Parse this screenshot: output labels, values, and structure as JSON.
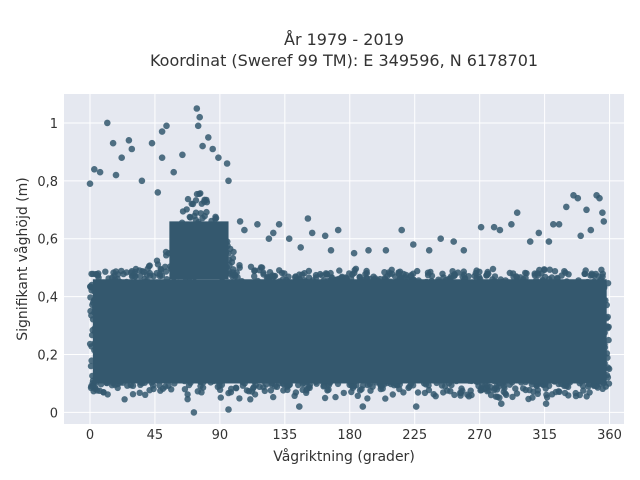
{
  "chart_data": {
    "type": "scatter",
    "title_line1": "År 1979 - 2019",
    "title_line2": "Koordinat (Sweref 99 TM): E 349596, N 6178701",
    "xlabel": "Vågriktning (grader)",
    "ylabel": "Signifikant våghöjd (m)",
    "xlim": [
      -18,
      370
    ],
    "ylim": [
      -0.04,
      1.1
    ],
    "xticks": [
      0,
      45,
      90,
      135,
      180,
      225,
      270,
      315,
      360
    ],
    "xtick_labels": [
      "0",
      "45",
      "90",
      "135",
      "180",
      "225",
      "270",
      "315",
      "360"
    ],
    "yticks": [
      0,
      0.2,
      0.4,
      0.6,
      0.8,
      1
    ],
    "ytick_labels": [
      "0",
      "0,2",
      "0,4",
      "0,6",
      "0,8",
      "1"
    ],
    "grid": true,
    "marker_color": "#34586e",
    "plot_background": "#e5e8f0",
    "dense_band": {
      "x_range": [
        0,
        360
      ],
      "core_y_range": [
        0.06,
        0.5
      ],
      "peak_region_x": [
        55,
        95
      ],
      "peak_region_upper_y": 0.78
    },
    "points": [
      {
        "x": 12,
        "y": 1.0
      },
      {
        "x": 74,
        "y": 1.05
      },
      {
        "x": 76,
        "y": 1.02
      },
      {
        "x": 75,
        "y": 0.99
      },
      {
        "x": 53,
        "y": 0.99
      },
      {
        "x": 50,
        "y": 0.97
      },
      {
        "x": 82,
        "y": 0.95
      },
      {
        "x": 27,
        "y": 0.94
      },
      {
        "x": 16,
        "y": 0.93
      },
      {
        "x": 43,
        "y": 0.93
      },
      {
        "x": 78,
        "y": 0.92
      },
      {
        "x": 85,
        "y": 0.91
      },
      {
        "x": 29,
        "y": 0.91
      },
      {
        "x": 22,
        "y": 0.88
      },
      {
        "x": 50,
        "y": 0.88
      },
      {
        "x": 64,
        "y": 0.89
      },
      {
        "x": 89,
        "y": 0.88
      },
      {
        "x": 95,
        "y": 0.86
      },
      {
        "x": 3,
        "y": 0.84
      },
      {
        "x": 7,
        "y": 0.83
      },
      {
        "x": 18,
        "y": 0.82
      },
      {
        "x": 0,
        "y": 0.79
      },
      {
        "x": 36,
        "y": 0.8
      },
      {
        "x": 58,
        "y": 0.83
      },
      {
        "x": 96,
        "y": 0.8
      },
      {
        "x": 47,
        "y": 0.76
      },
      {
        "x": 104,
        "y": 0.66
      },
      {
        "x": 116,
        "y": 0.65
      },
      {
        "x": 107,
        "y": 0.63
      },
      {
        "x": 124,
        "y": 0.6
      },
      {
        "x": 131,
        "y": 0.65
      },
      {
        "x": 127,
        "y": 0.62
      },
      {
        "x": 138,
        "y": 0.6
      },
      {
        "x": 146,
        "y": 0.57
      },
      {
        "x": 151,
        "y": 0.67
      },
      {
        "x": 154,
        "y": 0.62
      },
      {
        "x": 163,
        "y": 0.61
      },
      {
        "x": 167,
        "y": 0.56
      },
      {
        "x": 172,
        "y": 0.63
      },
      {
        "x": 183,
        "y": 0.55
      },
      {
        "x": 193,
        "y": 0.56
      },
      {
        "x": 205,
        "y": 0.56
      },
      {
        "x": 216,
        "y": 0.63
      },
      {
        "x": 224,
        "y": 0.58
      },
      {
        "x": 235,
        "y": 0.56
      },
      {
        "x": 243,
        "y": 0.6
      },
      {
        "x": 252,
        "y": 0.59
      },
      {
        "x": 259,
        "y": 0.56
      },
      {
        "x": 271,
        "y": 0.64
      },
      {
        "x": 280,
        "y": 0.64
      },
      {
        "x": 284,
        "y": 0.63
      },
      {
        "x": 296,
        "y": 0.69
      },
      {
        "x": 292,
        "y": 0.65
      },
      {
        "x": 305,
        "y": 0.59
      },
      {
        "x": 311,
        "y": 0.62
      },
      {
        "x": 318,
        "y": 0.59
      },
      {
        "x": 321,
        "y": 0.65
      },
      {
        "x": 325,
        "y": 0.65
      },
      {
        "x": 330,
        "y": 0.71
      },
      {
        "x": 335,
        "y": 0.75
      },
      {
        "x": 338,
        "y": 0.74
      },
      {
        "x": 344,
        "y": 0.7
      },
      {
        "x": 351,
        "y": 0.75
      },
      {
        "x": 353,
        "y": 0.74
      },
      {
        "x": 355,
        "y": 0.69
      },
      {
        "x": 356,
        "y": 0.66
      },
      {
        "x": 340,
        "y": 0.61
      },
      {
        "x": 347,
        "y": 0.63
      },
      {
        "x": 72,
        "y": 0.0
      },
      {
        "x": 96,
        "y": 0.01
      },
      {
        "x": 189,
        "y": 0.02
      },
      {
        "x": 226,
        "y": 0.02
      },
      {
        "x": 285,
        "y": 0.03
      },
      {
        "x": 316,
        "y": 0.03
      },
      {
        "x": 145,
        "y": 0.02
      }
    ]
  }
}
